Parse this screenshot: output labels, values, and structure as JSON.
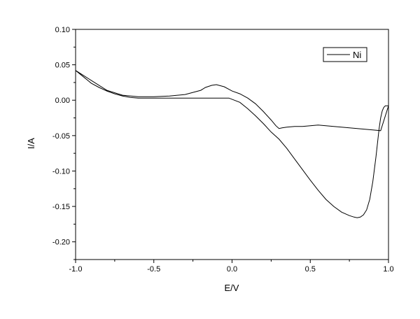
{
  "chart_data": {
    "type": "line",
    "xlabel": "E/V",
    "ylabel": "I/A",
    "xlim": [
      -1.0,
      1.0
    ],
    "ylim": [
      -0.225,
      0.1
    ],
    "x_ticks": [
      -1.0,
      -0.5,
      0.0,
      0.5,
      1.0
    ],
    "x_tick_labels": [
      "-1.0",
      "-0.5",
      "0.0",
      "0.5",
      "1.0"
    ],
    "y_ticks": [
      -0.2,
      -0.15,
      -0.1,
      -0.05,
      0.0,
      0.05,
      0.1
    ],
    "y_tick_labels": [
      "-0.20",
      "-0.15",
      "-0.10",
      "-0.05",
      "0.00",
      "0.05",
      "0.10"
    ],
    "grid": false,
    "legend_position": "top-right",
    "series": [
      {
        "name": "Ni",
        "color": "#000000",
        "x": [
          -1.0,
          -0.95,
          -0.9,
          -0.85,
          -0.8,
          -0.75,
          -0.7,
          -0.65,
          -0.6,
          -0.5,
          -0.4,
          -0.3,
          -0.2,
          -0.1,
          -0.02,
          0.05,
          0.1,
          0.15,
          0.2,
          0.25,
          0.3,
          0.35,
          0.4,
          0.45,
          0.5,
          0.55,
          0.6,
          0.65,
          0.7,
          0.75,
          0.78,
          0.8,
          0.82,
          0.84,
          0.86,
          0.88,
          0.9,
          0.92,
          0.94,
          0.95,
          0.96,
          0.97,
          0.98,
          1.0,
          0.95,
          0.9,
          0.85,
          0.8,
          0.7,
          0.6,
          0.55,
          0.5,
          0.45,
          0.4,
          0.35,
          0.32,
          0.3,
          0.28,
          0.25,
          0.2,
          0.15,
          0.1,
          0.05,
          0.0,
          -0.05,
          -0.1,
          -0.13,
          -0.17,
          -0.2,
          -0.25,
          -0.3,
          -0.4,
          -0.5,
          -0.6,
          -0.7,
          -0.8,
          -0.9,
          -1.0
        ],
        "y": [
          0.042,
          0.033,
          0.024,
          0.018,
          0.013,
          0.009,
          0.006,
          0.004,
          0.003,
          0.003,
          0.003,
          0.003,
          0.003,
          0.003,
          0.003,
          -0.003,
          -0.012,
          -0.022,
          -0.033,
          -0.045,
          -0.055,
          -0.068,
          -0.083,
          -0.098,
          -0.113,
          -0.127,
          -0.14,
          -0.15,
          -0.158,
          -0.163,
          -0.165,
          -0.166,
          -0.165,
          -0.162,
          -0.155,
          -0.14,
          -0.115,
          -0.08,
          -0.04,
          -0.025,
          -0.015,
          -0.01,
          -0.008,
          -0.008,
          -0.043,
          -0.042,
          -0.041,
          -0.04,
          -0.038,
          -0.036,
          -0.035,
          -0.036,
          -0.037,
          -0.037,
          -0.038,
          -0.039,
          -0.04,
          -0.036,
          -0.028,
          -0.016,
          -0.005,
          0.003,
          0.009,
          0.013,
          0.019,
          0.022,
          0.021,
          0.018,
          0.014,
          0.011,
          0.008,
          0.006,
          0.005,
          0.005,
          0.007,
          0.014,
          0.028,
          0.042
        ]
      }
    ]
  }
}
